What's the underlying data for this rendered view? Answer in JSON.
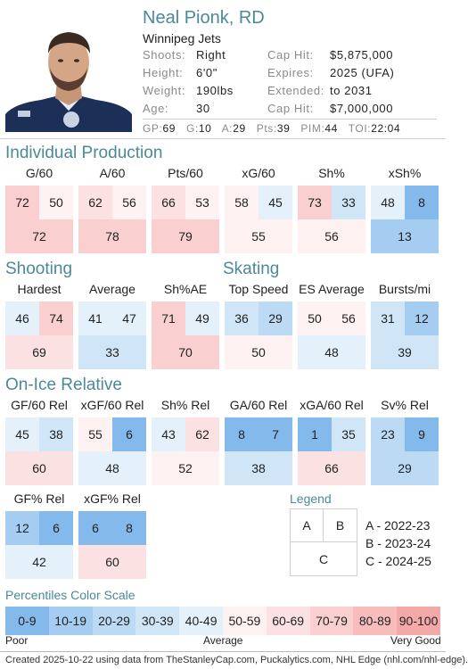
{
  "player": {
    "name": "Neal Pionk, RD",
    "team": "Winnipeg Jets",
    "info": [
      {
        "label": "Shoots:",
        "value": "Right",
        "label2": "Cap Hit:",
        "value2": "$5,875,000"
      },
      {
        "label": "Height:",
        "value": "6'0\"",
        "label2": "Expires:",
        "value2": "2025 (UFA)"
      },
      {
        "label": "Weight:",
        "value": "190lbs",
        "label2": "Extended:",
        "value2": "to 2031"
      },
      {
        "label": "Age:",
        "value": "30",
        "label2": "Cap Hit:",
        "value2": "$7,000,000"
      }
    ],
    "statline": [
      {
        "label": "GP:",
        "value": "69"
      },
      {
        "label": "G:",
        "value": "10"
      },
      {
        "label": "A:",
        "value": "29"
      },
      {
        "label": "Pts:",
        "value": "39"
      },
      {
        "label": "PIM:",
        "value": "44"
      },
      {
        "label": "TOI:",
        "value": "22:04"
      }
    ]
  },
  "sections": [
    {
      "title": "Individual Production",
      "metrics": [
        {
          "label": "G/60",
          "a": 72,
          "b": 50,
          "c": 72
        },
        {
          "label": "A/60",
          "a": 62,
          "b": 56,
          "c": 78
        },
        {
          "label": "Pts/60",
          "a": 66,
          "b": 53,
          "c": 79
        },
        {
          "label": "xG/60",
          "a": 58,
          "b": 45,
          "c": 55
        },
        {
          "label": "Sh%",
          "a": 73,
          "b": 33,
          "c": 56
        },
        {
          "label": "xSh%",
          "a": 48,
          "b": 8,
          "c": 13
        }
      ]
    },
    {
      "title": "Shooting",
      "metrics": [
        {
          "label": "Hardest",
          "a": 46,
          "b": 74,
          "c": 69
        },
        {
          "label": "Average",
          "a": 41,
          "b": 47,
          "c": 33
        },
        {
          "label": "Sh%AE",
          "a": 71,
          "b": 49,
          "c": 70
        }
      ]
    },
    {
      "title": "Skating",
      "metrics": [
        {
          "label": "Top Speed",
          "a": 36,
          "b": 29,
          "c": 50
        },
        {
          "label": "ES Average",
          "a": 50,
          "b": 56,
          "c": 48
        },
        {
          "label": "Bursts/mi",
          "a": 31,
          "b": 12,
          "c": 39
        }
      ]
    },
    {
      "title": "On-Ice Relative",
      "metrics": [
        {
          "label": "GF/60 Rel",
          "a": 45,
          "b": 38,
          "c": 60
        },
        {
          "label": "xGF/60 Rel",
          "a": 55,
          "b": 6,
          "c": 48
        },
        {
          "label": "Sh% Rel",
          "a": 43,
          "b": 62,
          "c": 52
        },
        {
          "label": "GA/60 Rel",
          "a": 8,
          "b": 7,
          "c": 38
        },
        {
          "label": "xGA/60 Rel",
          "a": 1,
          "b": 35,
          "c": 66
        },
        {
          "label": "Sv% Rel",
          "a": 23,
          "b": 9,
          "c": 29
        },
        {
          "label": "GF% Rel",
          "a": 12,
          "b": 6,
          "c": 42
        },
        {
          "label": "xGF% Rel",
          "a": 6,
          "b": 8,
          "c": 60
        }
      ]
    }
  ],
  "legend": {
    "title": "Legend",
    "cells": {
      "a": "A",
      "b": "B",
      "c": "C"
    },
    "items": [
      "A - 2022-23",
      "B - 2023-24",
      "C - 2024-25"
    ]
  },
  "color_scale": {
    "title": "Percentiles Color Scale",
    "bins": [
      {
        "label": "0-9",
        "color": "#84b9ec"
      },
      {
        "label": "10-19",
        "color": "#a5cdf1"
      },
      {
        "label": "20-29",
        "color": "#bcdaf4"
      },
      {
        "label": "30-39",
        "color": "#d0e6f7"
      },
      {
        "label": "40-49",
        "color": "#e4f1fa"
      },
      {
        "label": "50-59",
        "color": "#fdf1f1"
      },
      {
        "label": "60-69",
        "color": "#fbe1e1"
      },
      {
        "label": "70-79",
        "color": "#f9cfcf"
      },
      {
        "label": "80-89",
        "color": "#f7bdbd"
      },
      {
        "label": "90-100",
        "color": "#f4a9a9"
      }
    ],
    "low_label": "Poor",
    "mid_label": "Average",
    "high_label": "Very Good"
  },
  "footer": "Created 2025-10-22 using data from TheStanleyCap.com, Puckalytics.com, NHL Edge (nhl.com/nhl-edge)."
}
